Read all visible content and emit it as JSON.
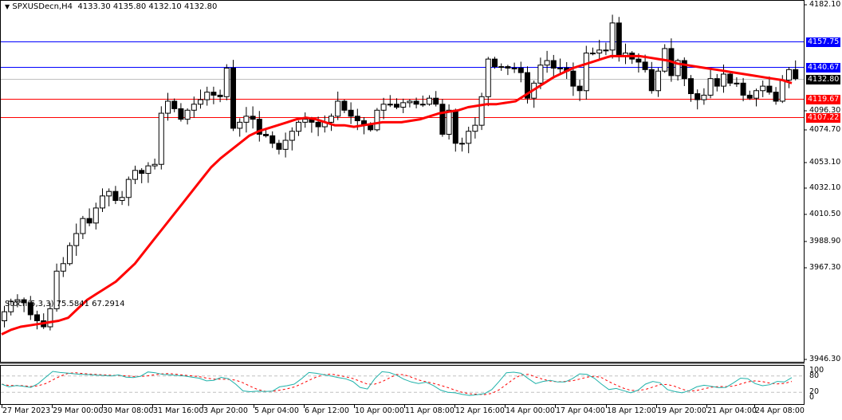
{
  "header": {
    "symbol": "SPXUSDecn,H4",
    "ohlc": "4133.30 4135.80 4132.10 4132.80",
    "dropdown_icon": "triangle-down-icon"
  },
  "price_axis": {
    "ticks": [
      "4182.10",
      "4096.30",
      "4074.70",
      "4053.10",
      "4032.10",
      "4010.50",
      "3988.90",
      "3967.30",
      "3946.30"
    ]
  },
  "levels": [
    {
      "label": "4157.75",
      "price": 4157.75,
      "color": "#0000ff"
    },
    {
      "label": "4140.67",
      "price": 4140.67,
      "color": "#0000ff"
    },
    {
      "label": "4132.80",
      "price": 4132.8,
      "color": "#000000",
      "line": "#c0c0c0"
    },
    {
      "label": "4119.67",
      "price": 4119.67,
      "color": "#ff0000"
    },
    {
      "label": "4107.22",
      "price": 4107.22,
      "color": "#ff0000"
    }
  ],
  "stoch": {
    "label": "Stoch(5,3,3) 75.5841 67.2914",
    "ticks": [
      "100",
      "80",
      "20",
      "0"
    ]
  },
  "time_axis": {
    "labels": [
      "27 Mar 2023",
      "29 Mar 00:00",
      "30 Mar 08:00",
      "31 Mar 16:00",
      "3 Apr 20:00",
      "5 Apr 04:00",
      "6 Apr 12:00",
      "10 Apr 00:00",
      "11 Apr 08:00",
      "12 Apr 16:00",
      "14 Apr 00:00",
      "17 Apr 04:00",
      "18 Apr 12:00",
      "19 Apr 20:00",
      "21 Apr 04:00",
      "24 Apr 08:00"
    ]
  },
  "colors": {
    "ma": "#ff0000",
    "stoch_main": "#20b2aa",
    "stoch_signal": "#ff0000",
    "level_grid": "#c0c0c0"
  },
  "chart_data": {
    "type": "candlestick",
    "title": "SPXUSDecn,H4",
    "timeframe": "H4",
    "ylim": [
      3946.3,
      4182.1
    ],
    "xlabel": "",
    "ylabel": "",
    "grid": false,
    "x": [
      "27 Mar 2023",
      "29 Mar 00:00",
      "30 Mar 08:00",
      "31 Mar 16:00",
      "3 Apr 20:00",
      "5 Apr 04:00",
      "6 Apr 12:00",
      "10 Apr 00:00",
      "11 Apr 08:00",
      "12 Apr 16:00",
      "14 Apr 00:00",
      "17 Apr 04:00",
      "18 Apr 12:00",
      "19 Apr 20:00",
      "21 Apr 04:00",
      "24 Apr 08:00"
    ],
    "last_ohlc": {
      "open": 4133.3,
      "high": 4135.8,
      "low": 4132.1,
      "close": 4132.8
    },
    "horizontal_levels": [
      4157.75,
      4140.67,
      4119.67,
      4107.22
    ],
    "candles_close_approx": [
      3978,
      3985,
      3986,
      3984,
      3976,
      3972,
      3968,
      3980,
      4005,
      4010,
      4022,
      4030,
      4040,
      4037,
      4047,
      4055,
      4058,
      4052,
      4054,
      4066,
      4072,
      4070,
      4075,
      4076,
      4110,
      4118,
      4113,
      4106,
      4112,
      4116,
      4119,
      4124,
      4122,
      4121,
      4140,
      4100,
      4104,
      4108,
      4106,
      4096,
      4095,
      4090,
      4086,
      4092,
      4098,
      4104,
      4106,
      4104,
      4101,
      4104,
      4108,
      4118,
      4112,
      4108,
      4105,
      4102,
      4099,
      4112,
      4116,
      4116,
      4114,
      4117,
      4118,
      4116,
      4116,
      4120,
      4116,
      4096,
      4112,
      4090,
      4090,
      4098,
      4102,
      4121,
      4146,
      4141,
      4141,
      4140,
      4140,
      4137,
      4120,
      4130,
      4142,
      4145,
      4140,
      4140,
      4138,
      4128,
      4125,
      4150,
      4150,
      4152,
      4152,
      4170,
      4148,
      4150,
      4146,
      4144,
      4139,
      4125,
      4138,
      4153,
      4135,
      4145,
      4133,
      4123,
      4119,
      4122,
      4133,
      4128,
      4136,
      4130,
      4130,
      4122,
      4120,
      4125,
      4128,
      4124,
      4118,
      4132,
      4139,
      4133
    ],
    "series": [
      {
        "name": "MA (red)",
        "values_approx": [
          3963,
          3966,
          3968,
          3969,
          3970,
          3971,
          3972,
          3974,
          3980,
          3986,
          3990,
          3994,
          3998,
          4004,
          4010,
          4018,
          4026,
          4034,
          4042,
          4050,
          4058,
          4066,
          4074,
          4080,
          4085,
          4090,
          4095,
          4098,
          4100,
          4102,
          4104,
          4106,
          4107,
          4106,
          4104,
          4102,
          4102,
          4101,
          4102,
          4103,
          4104,
          4104,
          4104,
          4105,
          4106,
          4108,
          4110,
          4111,
          4112,
          4114,
          4115,
          4116,
          4116,
          4117,
          4118,
          4122,
          4126,
          4130,
          4134,
          4137,
          4140,
          4142,
          4144,
          4146,
          4148,
          4148,
          4148,
          4148,
          4147,
          4146,
          4145,
          4143,
          4142,
          4141,
          4140,
          4139,
          4138,
          4137,
          4136,
          4135,
          4134,
          4133,
          4132,
          4130
        ]
      },
      {
        "name": "Stoch %K (teal)",
        "type": "line",
        "ylim": [
          0,
          100
        ]
      },
      {
        "name": "Stoch %D (red dashed)",
        "type": "line",
        "ylim": [
          0,
          100
        ]
      }
    ],
    "stochastic": {
      "params": "5,3,3",
      "k": 75.5841,
      "d": 67.2914,
      "levels": [
        80,
        20
      ]
    }
  }
}
